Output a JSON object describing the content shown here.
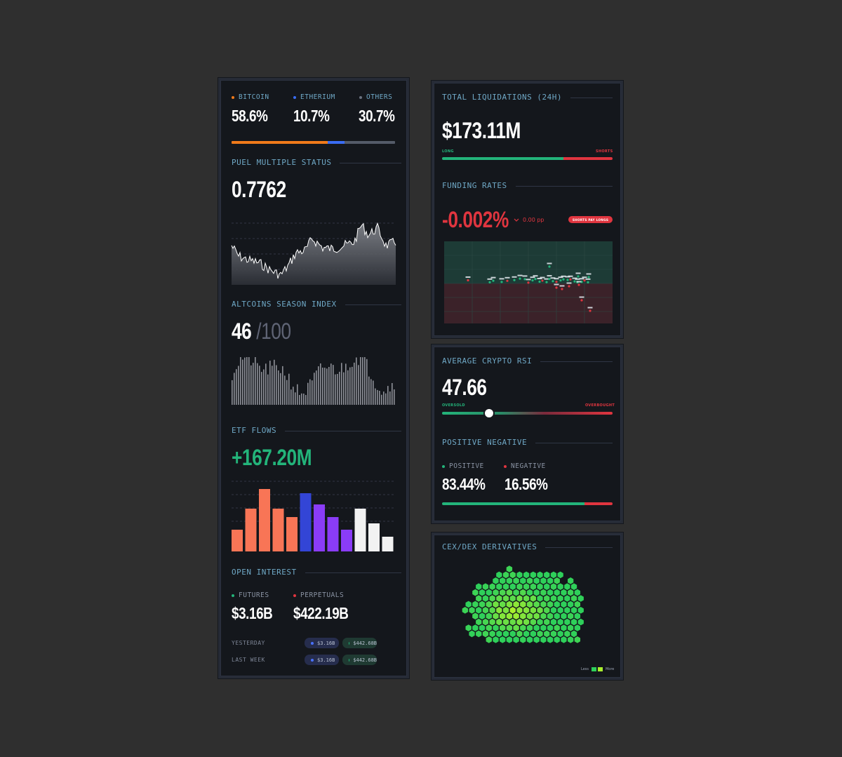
{
  "left_panel": {
    "dominance": [
      {
        "label": "BITCOIN",
        "value": "58.6%",
        "color": "#f07a1a"
      },
      {
        "label": "ETHERIUM",
        "value": "10.7%",
        "color": "#3a6cf4"
      },
      {
        "label": "OTHERS",
        "value": "30.7%",
        "color": "#6b7280"
      }
    ],
    "puel": {
      "title": "PUEL MULTIPLE STATUS",
      "value": "0.7762"
    },
    "altcoin": {
      "title": "ALTCOINS SEASON INDEX",
      "value": "46",
      "max": "/100"
    },
    "etf": {
      "title": "ETF FLOWS",
      "value": "+167.20M"
    },
    "open_interest": {
      "title": "OPEN INTEREST",
      "futures_label": "FUTURES",
      "futures_value": "$3.16B",
      "perpetuals_label": "PERPETUALS",
      "perpetuals_value": "$422.19B",
      "rows": [
        {
          "label": "YESTERDAY",
          "futures": "$3.16B",
          "perps": "$442.68B"
        },
        {
          "label": "LAST WEEK",
          "futures": "$3.16B",
          "perps": "$442.68B"
        }
      ]
    }
  },
  "liquidations": {
    "title": "TOTAL LIQUIDATIONS (24H)",
    "value": "$173.11M",
    "long_label": "LONG",
    "shorts_label": "SHORTS",
    "long_share": 0.71
  },
  "funding": {
    "title": "FUNDING RATES",
    "value": "-0.002%",
    "change": "0.00 pp",
    "badge": "SHORTS PAY LONGS"
  },
  "rsi": {
    "title": "AVERAGE CRYPTO RSI",
    "value": "47.66",
    "oversold_label": "OVERSOLD",
    "overbought_label": "OVERBOUGHT",
    "level": 0.275
  },
  "sentiment": {
    "title": "POSITIVE NEGATIVE",
    "positive_label": "POSITIVE",
    "positive_value": "83.44%",
    "negative_label": "NEGATIVE",
    "negative_value": "16.56%",
    "positive_share": 0.8344
  },
  "derivatives": {
    "title": "CEX/DEX DERIVATIVES",
    "legend_less": "Less",
    "legend_more": "More"
  },
  "colors": {
    "green": "#23b47a",
    "red": "#e0353f",
    "accent_title": "#6fa8c6"
  }
}
